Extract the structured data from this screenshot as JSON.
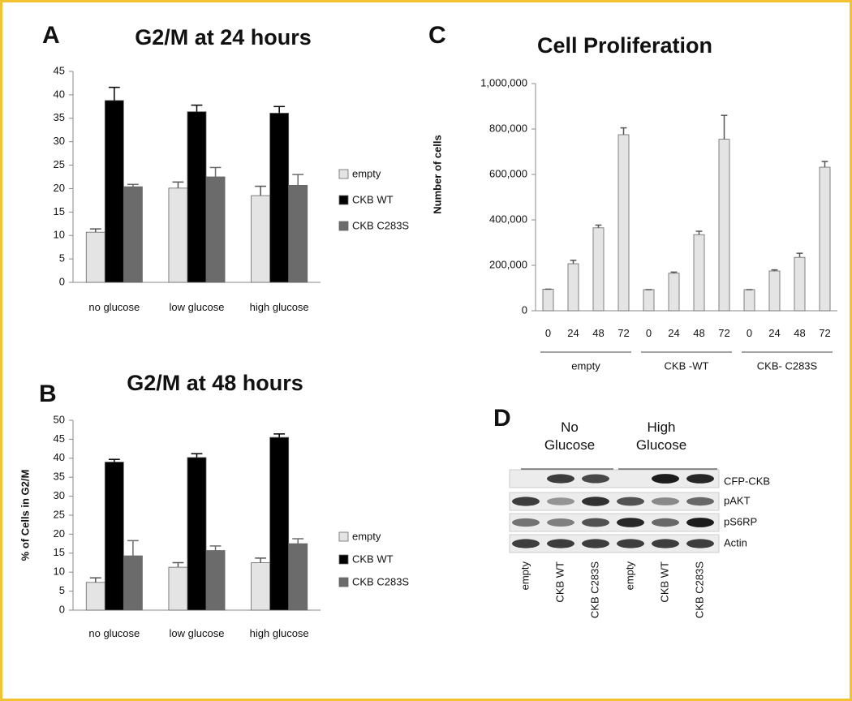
{
  "panel_labels": [
    "A",
    "B",
    "C",
    "D"
  ],
  "chart_data": [
    {
      "type": "bar",
      "title": "G2/M at 24 hours",
      "categories": [
        "no glucose",
        "low glucose",
        "high glucose"
      ],
      "series": [
        {
          "name": "empty",
          "color": "#e4e4e4",
          "values": [
            10.7,
            20.1,
            18.5
          ],
          "errors": [
            0.7,
            1.3,
            2.0
          ]
        },
        {
          "name": "CKB WT",
          "color": "#000000",
          "values": [
            38.8,
            36.4,
            36.1
          ],
          "errors": [
            2.8,
            1.4,
            1.4
          ]
        },
        {
          "name": "CKB C283S",
          "color": "#6b6b6b",
          "values": [
            20.4,
            22.5,
            20.7
          ],
          "errors": [
            0.5,
            2.0,
            2.3
          ]
        }
      ],
      "ylim": [
        0,
        45
      ],
      "yticks": [
        0,
        5,
        10,
        15,
        20,
        25,
        30,
        35,
        40,
        45
      ],
      "legend": "right"
    },
    {
      "type": "bar",
      "title": "G2/M at 48 hours",
      "y_label": "% of Cells in G2/M",
      "categories": [
        "no glucose",
        "low glucose",
        "high glucose"
      ],
      "series": [
        {
          "name": "empty",
          "color": "#e4e4e4",
          "values": [
            7.3,
            11.3,
            12.5
          ],
          "errors": [
            1.2,
            1.2,
            1.2
          ]
        },
        {
          "name": "CKB WT",
          "color": "#000000",
          "values": [
            39.0,
            40.2,
            45.5
          ],
          "errors": [
            0.7,
            1.0,
            0.9
          ]
        },
        {
          "name": "CKB C283S",
          "color": "#6b6b6b",
          "values": [
            14.3,
            15.7,
            17.5
          ],
          "errors": [
            4.0,
            1.2,
            1.3
          ]
        }
      ],
      "ylim": [
        0,
        50
      ],
      "yticks": [
        0,
        5,
        10,
        15,
        20,
        25,
        30,
        35,
        40,
        45,
        50
      ],
      "legend": "right"
    },
    {
      "type": "bar",
      "title": "Cell Proliferation",
      "y_label": "Number of cells",
      "categories": [
        "0",
        "24",
        "48",
        "72",
        "0",
        "24",
        "48",
        "72",
        "0",
        "24",
        "48",
        "72"
      ],
      "x_groups": [
        "empty",
        "CKB -WT",
        "CKB- C283S"
      ],
      "series": [
        {
          "color": "#e4e4e4",
          "values": [
            95000,
            207000,
            365000,
            775000,
            93000,
            165000,
            335000,
            755000,
            93000,
            175000,
            235000,
            632000
          ],
          "errors": [
            0,
            15000,
            12000,
            30000,
            0,
            5000,
            15000,
            105000,
            0,
            5000,
            18000,
            25000
          ]
        }
      ],
      "ylim": [
        0,
        1000000
      ],
      "yticks": [
        0,
        {
          "value": 200000,
          "label": "200,000"
        },
        {
          "value": 400000,
          "label": "400,000"
        },
        {
          "value": 600000,
          "label": "600,000"
        },
        {
          "value": 800000,
          "label": "800,000"
        },
        {
          "value": 1000000,
          "label": "1,000,000"
        }
      ]
    }
  ],
  "blot": {
    "conditions": [
      "No Glucose",
      "High Glucose"
    ],
    "rows": [
      "CFP-CKB",
      "pAKT",
      "pS6RP",
      "Actin"
    ],
    "lanes": [
      "empty",
      "CKB WT",
      "CKB C283S",
      "empty",
      "CKB WT",
      "CKB C283S"
    ]
  }
}
